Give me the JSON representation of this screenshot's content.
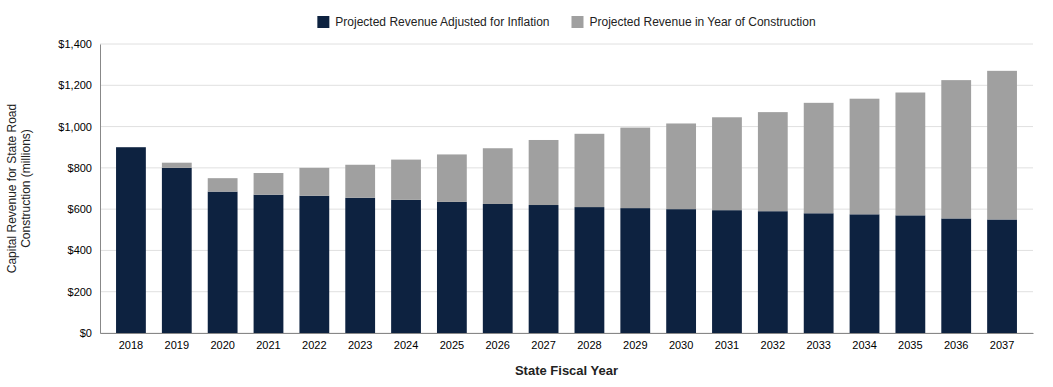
{
  "chart_data": {
    "type": "bar",
    "stacked": true,
    "xlabel": "State Fiscal Year",
    "ylabel": "Capital Revenue for State Road\nConstruction (millions)",
    "categories": [
      "2018",
      "2019",
      "2020",
      "2021",
      "2022",
      "2023",
      "2024",
      "2025",
      "2026",
      "2027",
      "2028",
      "2029",
      "2030",
      "2031",
      "2032",
      "2033",
      "2034",
      "2035",
      "2036",
      "2037"
    ],
    "series": [
      {
        "name": "Projected Revenue Adjusted for Inflation",
        "color": "#0d2240",
        "values": [
          900,
          800,
          685,
          670,
          665,
          655,
          645,
          635,
          625,
          620,
          610,
          605,
          600,
          595,
          590,
          580,
          575,
          570,
          555,
          550
        ]
      },
      {
        "name": "Projected Revenue in Year of Construction",
        "color": "#a0a0a0",
        "values": [
          0,
          25,
          65,
          105,
          135,
          160,
          195,
          230,
          270,
          315,
          355,
          390,
          415,
          450,
          480,
          535,
          560,
          595,
          670,
          720
        ]
      }
    ],
    "ylim": [
      0,
      1400
    ],
    "yticks": [
      {
        "value": 0,
        "label": "$0"
      },
      {
        "value": 200,
        "label": "$200"
      },
      {
        "value": 400,
        "label": "$400"
      },
      {
        "value": 600,
        "label": "$600"
      },
      {
        "value": 800,
        "label": "$800"
      },
      {
        "value": 1000,
        "label": "$1,000"
      },
      {
        "value": 1200,
        "label": "$1,200"
      },
      {
        "value": 1400,
        "label": "$1,400"
      }
    ],
    "grid": true,
    "legend": "top"
  }
}
